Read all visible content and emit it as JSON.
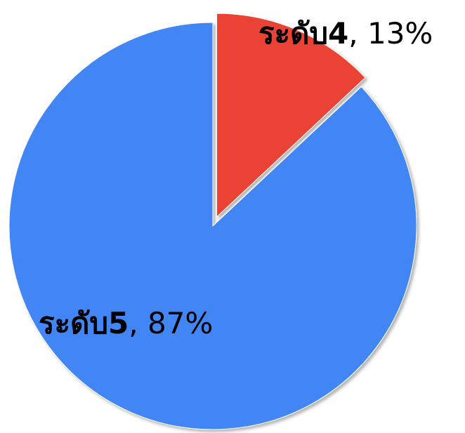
{
  "chart_data": {
    "type": "pie",
    "categories": [
      "ระดับ4",
      "ระดับ5"
    ],
    "values": [
      13,
      87
    ],
    "value_labels": [
      ", 13%",
      ", 87%"
    ],
    "colors": [
      "#ea4335",
      "#4285f4"
    ],
    "exploded": [
      true,
      false
    ]
  }
}
